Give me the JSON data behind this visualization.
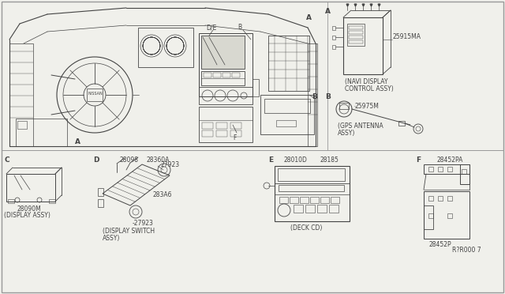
{
  "bg_color": "#f0f0eb",
  "line_color": "#444444",
  "border_color": "#999999",
  "part_labels": {
    "navi": "25915MA",
    "navi_desc1": "(NAVI DISPLAY",
    "navi_desc2": "CONTROL ASSY)",
    "gps": "25975M",
    "gps_desc1": "(GPS ANTENNA",
    "gps_desc2": "ASSY)",
    "display_num": "28090M",
    "display_desc": "(DISPLAY ASSY)",
    "ds_28098": "28098",
    "ds_28360A": "28360A",
    "ds_27923a": "27923",
    "ds_283A6": "283A6",
    "ds_27923b": "-27923",
    "ds_desc1": "(DISPLAY SWITCH",
    "ds_desc2": "ASSY)",
    "deck_28010D": "28010D",
    "deck_28185": "28185",
    "deck_desc": "(DECK CD)",
    "brkt_28452PA": "28452PA",
    "brkt_28452P": "28452P",
    "ref": "R?R000 7"
  }
}
